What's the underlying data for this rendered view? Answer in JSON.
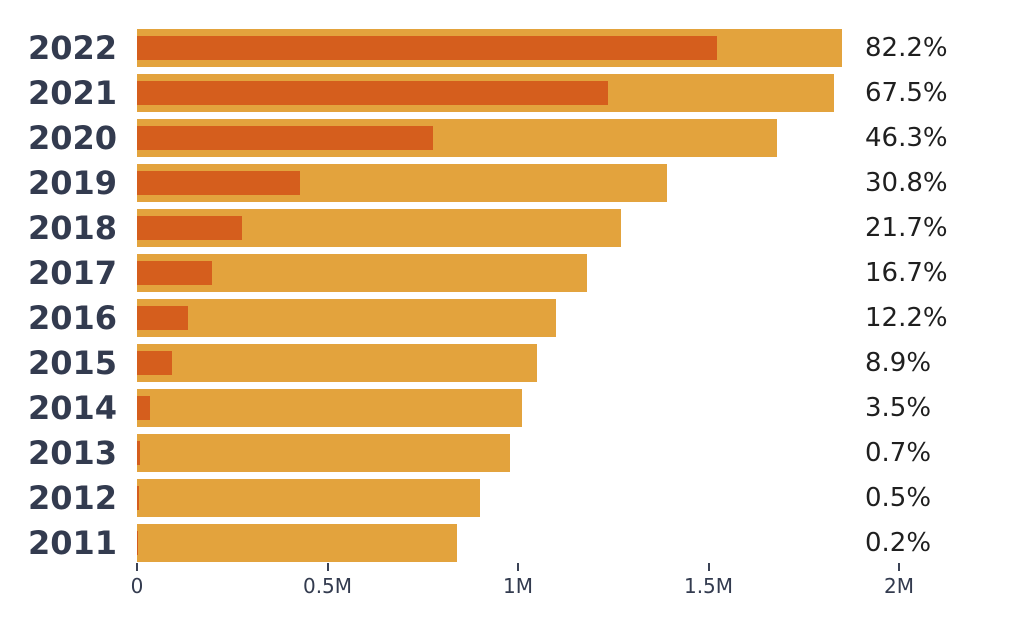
{
  "chart_data": {
    "type": "bar",
    "orientation": "horizontal",
    "categories": [
      "2022",
      "2021",
      "2020",
      "2019",
      "2018",
      "2017",
      "2016",
      "2015",
      "2014",
      "2013",
      "2012",
      "2011"
    ],
    "series": [
      {
        "name": "total",
        "color": "#E3A33D",
        "values": [
          1.85,
          1.83,
          1.68,
          1.39,
          1.27,
          1.18,
          1.1,
          1.05,
          1.01,
          0.98,
          0.9,
          0.84
        ]
      },
      {
        "name": "highlighted-share",
        "color": "#D55E1D",
        "values": [
          1.521,
          1.235,
          0.778,
          0.428,
          0.276,
          0.197,
          0.134,
          0.093,
          0.035,
          0.007,
          0.005,
          0.002
        ]
      }
    ],
    "percent_values": [
      82.2,
      67.5,
      46.3,
      30.8,
      21.7,
      16.7,
      12.2,
      8.9,
      3.5,
      0.7,
      0.5,
      0.2
    ],
    "percent_labels": [
      "82.2%",
      "67.5%",
      "46.3%",
      "30.8%",
      "21.7%",
      "16.7%",
      "12.2%",
      "8.9%",
      "3.5%",
      "0.7%",
      "0.5%",
      "0.2%"
    ],
    "x_ticks": [
      "0",
      "0.5M",
      "1M",
      "1.5M",
      "2M"
    ],
    "x_tick_values": [
      0,
      0.5,
      1,
      1.5,
      2
    ],
    "xlim": [
      0,
      2
    ],
    "unit": "M",
    "grid": false,
    "legend": false,
    "xlabel": "",
    "ylabel": ""
  },
  "style": {
    "background": "#FFFFFF",
    "year_label_color": "#333B4F",
    "percent_label_color": "#1F1F1F",
    "axis_color": "#3A4255"
  }
}
